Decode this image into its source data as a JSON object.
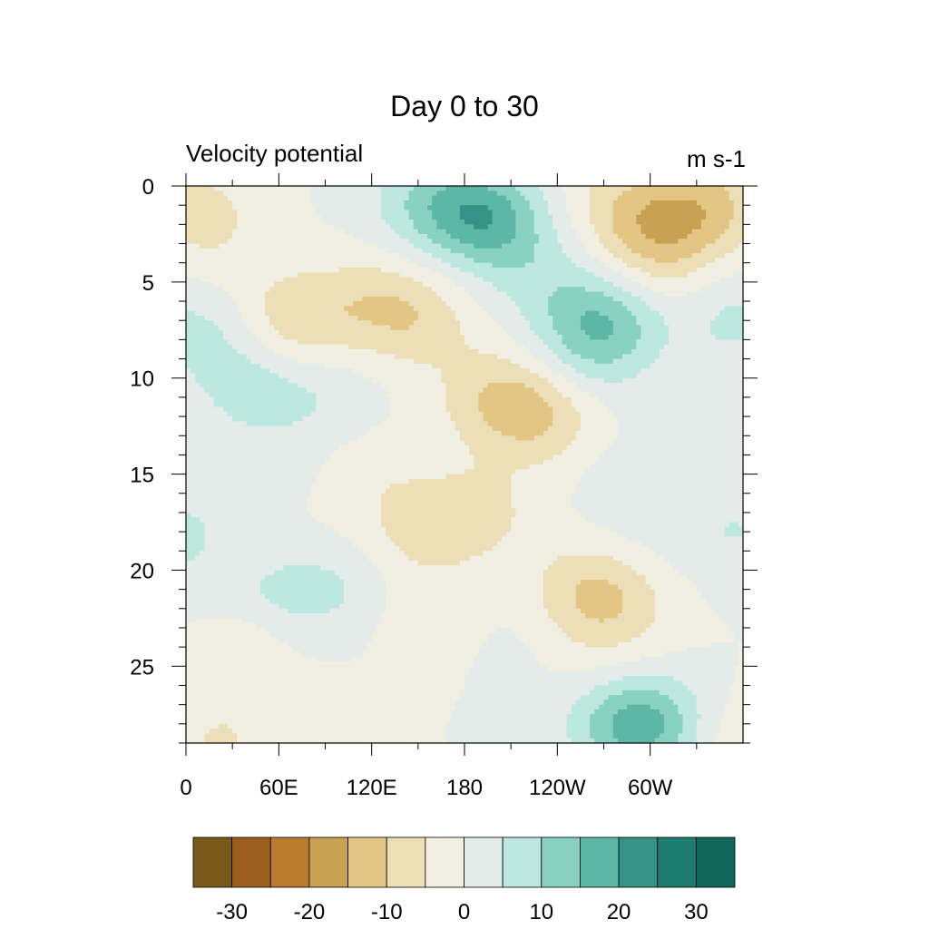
{
  "chart_data": {
    "type": "heatmap",
    "title": "Day 0 to 30",
    "subtitle_left": "Velocity potential",
    "subtitle_right": "m s-1",
    "x": {
      "range": [
        0,
        360
      ],
      "major_ticks": [
        {
          "value": 0,
          "label": "0"
        },
        {
          "value": 60,
          "label": "60E"
        },
        {
          "value": 120,
          "label": "120E"
        },
        {
          "value": 180,
          "label": "180"
        },
        {
          "value": 240,
          "label": "120W"
        },
        {
          "value": 300,
          "label": "60W"
        }
      ],
      "minor_step": 30
    },
    "y": {
      "range": [
        0,
        29
      ],
      "direction": "downward",
      "major_ticks": [
        {
          "value": 0,
          "label": "0"
        },
        {
          "value": 5,
          "label": "5"
        },
        {
          "value": 10,
          "label": "10"
        },
        {
          "value": 15,
          "label": "15"
        },
        {
          "value": 20,
          "label": "20"
        },
        {
          "value": 25,
          "label": "25"
        }
      ],
      "minor_step": 1
    },
    "colorbar": {
      "levels": [
        -30,
        -25,
        -20,
        -15,
        -10,
        -5,
        0,
        5,
        10,
        15,
        20,
        25,
        30
      ],
      "labels": [
        "-30",
        "-20",
        "-10",
        "0",
        "10",
        "20",
        "30"
      ],
      "colors": [
        "#7a5a1a",
        "#9c5e1e",
        "#ba7a2f",
        "#c9a152",
        "#e3c683",
        "#ecdfb7",
        "#f1efe1",
        "#e4ecea",
        "#bde8e0",
        "#89d2c2",
        "#5cb8a5",
        "#359386",
        "#1c7d70",
        "#0e6758"
      ]
    },
    "fields": {
      "background": 0,
      "blobs": [
        {
          "x": 8,
          "y": 1,
          "value": -5
        },
        {
          "x": 15,
          "y": 3,
          "value": -3
        },
        {
          "x": 0,
          "y": 7,
          "value": 5
        },
        {
          "x": 30,
          "y": 9,
          "value": 4
        },
        {
          "x": 45,
          "y": 11,
          "value": 5
        },
        {
          "x": 90,
          "y": 11,
          "value": 4
        },
        {
          "x": 70,
          "y": 7,
          "value": -9
        },
        {
          "x": 120,
          "y": 6,
          "value": -6
        },
        {
          "x": 150,
          "y": 7,
          "value": -7
        },
        {
          "x": 60,
          "y": 16,
          "value": 2
        },
        {
          "x": 120,
          "y": 15,
          "value": -3
        },
        {
          "x": 150,
          "y": 1,
          "value": 6
        },
        {
          "x": 180,
          "y": 1,
          "value": 9
        },
        {
          "x": 200,
          "y": 2,
          "value": 12
        },
        {
          "x": 230,
          "y": 5,
          "value": 5
        },
        {
          "x": 270,
          "y": 7,
          "value": 13
        },
        {
          "x": 260,
          "y": 9,
          "value": 5
        },
        {
          "x": 200,
          "y": 11,
          "value": -8
        },
        {
          "x": 230,
          "y": 12,
          "value": -9
        },
        {
          "x": 280,
          "y": 1,
          "value": -6
        },
        {
          "x": 310,
          "y": 2,
          "value": -8
        },
        {
          "x": 340,
          "y": 1,
          "value": -9
        },
        {
          "x": 300,
          "y": 4,
          "value": -5
        },
        {
          "x": 355,
          "y": 7,
          "value": 6
        },
        {
          "x": 280,
          "y": 15,
          "value": 2
        },
        {
          "x": 0,
          "y": 18,
          "value": 6
        },
        {
          "x": 50,
          "y": 18,
          "value": -3
        },
        {
          "x": 150,
          "y": 18,
          "value": -6
        },
        {
          "x": 190,
          "y": 17,
          "value": -6
        },
        {
          "x": 290,
          "y": 18,
          "value": 2
        },
        {
          "x": 355,
          "y": 18,
          "value": 5
        },
        {
          "x": 60,
          "y": 21,
          "value": 6
        },
        {
          "x": 100,
          "y": 21,
          "value": 4
        },
        {
          "x": 0,
          "y": 22,
          "value": 2
        },
        {
          "x": 30,
          "y": 24,
          "value": -5
        },
        {
          "x": 160,
          "y": 23,
          "value": -4
        },
        {
          "x": 260,
          "y": 21,
          "value": -8
        },
        {
          "x": 280,
          "y": 22,
          "value": -5
        },
        {
          "x": 200,
          "y": 24,
          "value": 2
        },
        {
          "x": 270,
          "y": 25,
          "value": -2
        },
        {
          "x": 20,
          "y": 29,
          "value": -5
        },
        {
          "x": 80,
          "y": 28,
          "value": -2
        },
        {
          "x": 280,
          "y": 28,
          "value": 8
        },
        {
          "x": 300,
          "y": 28,
          "value": 12
        },
        {
          "x": 355,
          "y": 29,
          "value": -4
        }
      ]
    }
  }
}
